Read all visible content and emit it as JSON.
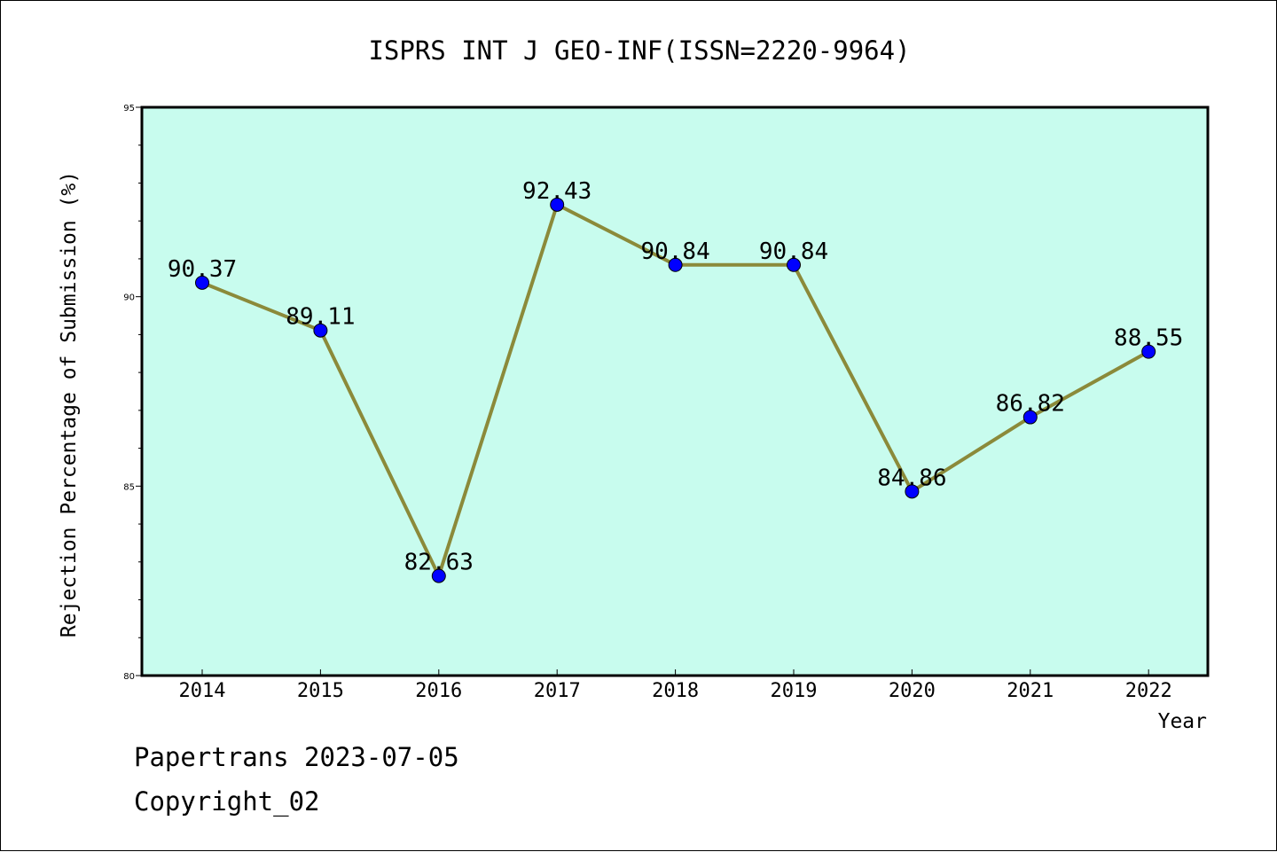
{
  "chart_data": {
    "type": "line",
    "title": "ISPRS INT J GEO-INF(ISSN=2220-9964)",
    "xlabel": "Year",
    "ylabel": "Rejection Percentage of Submission (%)",
    "categories": [
      "2014",
      "2015",
      "2016",
      "2017",
      "2018",
      "2019",
      "2020",
      "2021",
      "2022"
    ],
    "values": [
      90.37,
      89.11,
      82.63,
      92.43,
      90.84,
      90.84,
      84.86,
      86.82,
      88.55
    ],
    "data_labels": [
      "90.37",
      "89.11",
      "82.63",
      "92.43",
      "90.84",
      "90.84",
      "84.86",
      "86.82",
      "88.55"
    ],
    "ylim": [
      80,
      95
    ],
    "yticks": [
      80,
      85,
      90,
      95
    ],
    "grid": false,
    "colors": {
      "plot_background": "#c8fcee",
      "line": "#8b8a3a",
      "marker": "#0000ff"
    }
  },
  "footer": {
    "line1": "Papertrans 2023-07-05",
    "line2": "Copyright_02"
  }
}
